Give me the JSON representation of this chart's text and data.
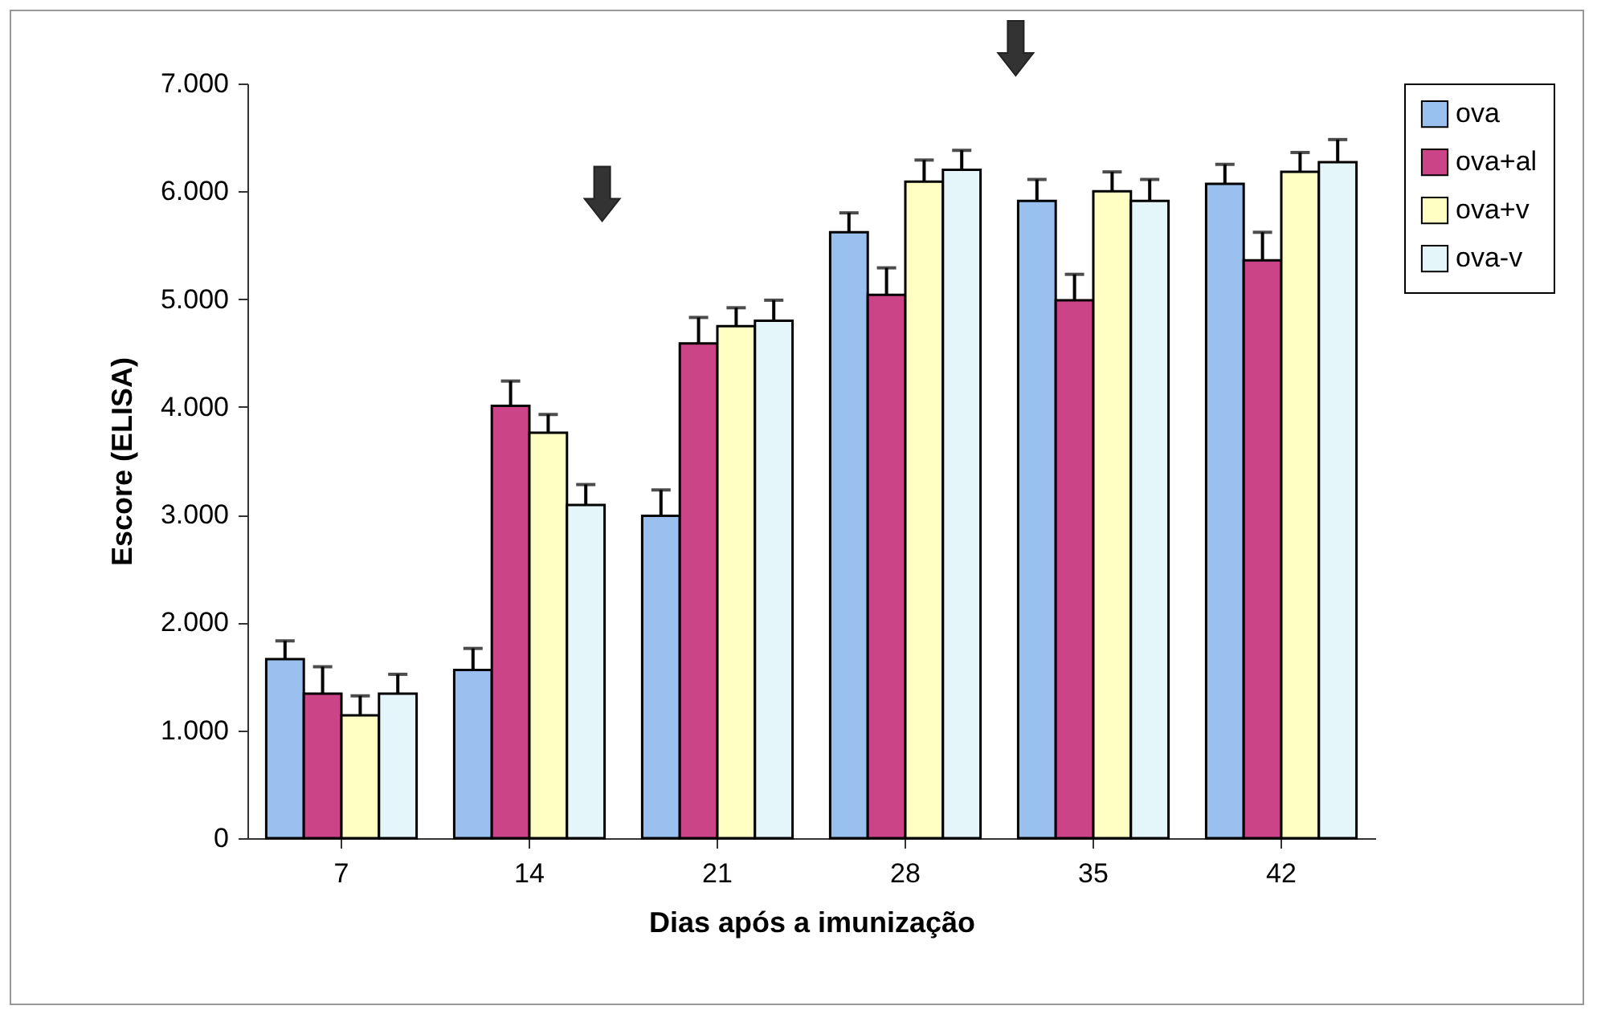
{
  "chart_data": {
    "type": "bar",
    "xlabel": "Dias após a imunização",
    "ylabel": "Escore (ELISA)",
    "categories": [
      "7",
      "14",
      "21",
      "28",
      "35",
      "42"
    ],
    "series": [
      {
        "name": "ova",
        "color": "#99c0ee",
        "values": [
          1660,
          1560,
          2990,
          5620,
          5910,
          6070
        ],
        "errors": [
          [
            1660,
            1830
          ],
          [
            1560,
            1760
          ],
          [
            2990,
            3230
          ],
          [
            5620,
            5800
          ],
          [
            5910,
            6110
          ],
          [
            6070,
            6250
          ]
        ]
      },
      {
        "name": "ova+al",
        "color": "#cc4488",
        "values": [
          1340,
          4010,
          4590,
          5040,
          4990,
          5360
        ],
        "errors": [
          [
            1340,
            1590
          ],
          [
            4010,
            4240
          ],
          [
            4590,
            4830
          ],
          [
            5040,
            5290
          ],
          [
            4990,
            5230
          ],
          [
            5360,
            5620
          ]
        ]
      },
      {
        "name": "ova+v",
        "color": "#ffffc4",
        "values": [
          1140,
          3760,
          4750,
          6090,
          6000,
          6180
        ],
        "errors": [
          [
            1140,
            1320
          ],
          [
            3760,
            3930
          ],
          [
            4750,
            4920
          ],
          [
            6090,
            6290
          ],
          [
            6000,
            6180
          ],
          [
            6180,
            6360
          ]
        ]
      },
      {
        "name": "ova-v",
        "color": "#e4f6fa",
        "values": [
          1340,
          3090,
          4800,
          6200,
          5910,
          6270
        ],
        "errors": [
          [
            1340,
            1520
          ],
          [
            3090,
            3280
          ],
          [
            4800,
            4990
          ],
          [
            6200,
            6380
          ],
          [
            5910,
            6110
          ],
          [
            6270,
            6480
          ]
        ]
      }
    ],
    "ylim": [
      0,
      7000
    ],
    "yticks": [
      0,
      {
        "value": 1000,
        "label": "1.000"
      },
      {
        "value": 2000,
        "label": "2.000"
      },
      {
        "value": 3000,
        "label": "3.000"
      },
      {
        "value": 4000,
        "label": "4.000"
      },
      {
        "value": 5000,
        "label": "5.000"
      },
      {
        "value": 6000,
        "label": "6.000"
      },
      {
        "value": 7000,
        "label": "7.000"
      }
    ],
    "legend": "right",
    "grid": false
  }
}
